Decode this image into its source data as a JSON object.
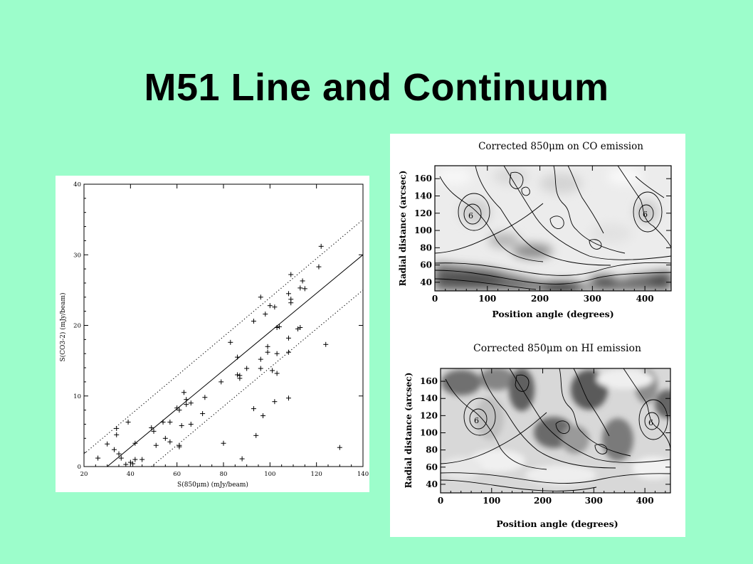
{
  "slide": {
    "title": "M51 Line and Continuum"
  },
  "chart_data": [
    {
      "type": "scatter",
      "title": "",
      "xlabel": "S(850μm) (mJy/beam)",
      "ylabel": "S(CO3-2) (mJy/beam)",
      "xlim": [
        20,
        140
      ],
      "ylim": [
        0,
        40
      ],
      "xticks": [
        "20",
        "40",
        "60",
        "80",
        "100",
        "120",
        "140"
      ],
      "yticks": [
        "0",
        "10",
        "20",
        "30",
        "40"
      ],
      "marker": "plus",
      "points": [
        [
          26,
          1.2
        ],
        [
          30,
          3.2
        ],
        [
          33,
          2.4
        ],
        [
          34,
          4.5
        ],
        [
          34,
          5.4
        ],
        [
          35,
          1.8
        ],
        [
          36,
          1.2
        ],
        [
          38,
          0.3
        ],
        [
          39,
          6.3
        ],
        [
          40,
          0.6
        ],
        [
          41,
          0.4
        ],
        [
          42,
          3.3
        ],
        [
          42,
          1.0
        ],
        [
          45,
          1.0
        ],
        [
          49,
          5.5
        ],
        [
          50,
          5.0
        ],
        [
          51,
          3.0
        ],
        [
          54,
          6.3
        ],
        [
          55,
          4.0
        ],
        [
          57,
          6.3
        ],
        [
          57,
          3.5
        ],
        [
          60,
          8.3
        ],
        [
          61,
          8.0
        ],
        [
          61,
          2.8
        ],
        [
          61,
          3.0
        ],
        [
          62,
          5.8
        ],
        [
          63,
          10.5
        ],
        [
          64,
          9.5
        ],
        [
          64,
          8.8
        ],
        [
          66,
          9.0
        ],
        [
          66,
          6.0
        ],
        [
          71,
          7.5
        ],
        [
          72,
          9.8
        ],
        [
          79,
          12.0
        ],
        [
          80,
          3.3
        ],
        [
          83,
          17.6
        ],
        [
          86,
          13.0
        ],
        [
          86,
          15.5
        ],
        [
          87,
          12.5
        ],
        [
          87,
          12.9
        ],
        [
          88,
          1.1
        ],
        [
          90,
          13.9
        ],
        [
          93,
          20.6
        ],
        [
          93,
          8.2
        ],
        [
          94,
          4.4
        ],
        [
          96,
          24.0
        ],
        [
          96,
          15.2
        ],
        [
          96,
          13.9
        ],
        [
          97,
          7.2
        ],
        [
          98,
          21.6
        ],
        [
          99,
          17.0
        ],
        [
          99,
          16.2
        ],
        [
          100,
          22.8
        ],
        [
          101,
          13.6
        ],
        [
          102,
          22.6
        ],
        [
          102,
          9.2
        ],
        [
          103,
          16.0
        ],
        [
          103,
          13.2
        ],
        [
          103,
          19.7
        ],
        [
          104,
          19.8
        ],
        [
          108,
          24.5
        ],
        [
          108,
          16.2
        ],
        [
          108,
          18.2
        ],
        [
          108,
          9.7
        ],
        [
          109,
          27.2
        ],
        [
          109,
          23.7
        ],
        [
          109,
          23.2
        ],
        [
          112,
          19.5
        ],
        [
          113,
          25.3
        ],
        [
          113,
          19.7
        ],
        [
          114,
          26.3
        ],
        [
          115,
          25.2
        ],
        [
          121,
          28.3
        ],
        [
          122,
          31.2
        ],
        [
          124,
          17.3
        ],
        [
          130,
          2.7
        ]
      ],
      "lines": [
        {
          "style": "solid",
          "from": [
            30,
            0
          ],
          "to": [
            140,
            30
          ]
        },
        {
          "style": "dotted",
          "from": [
            20,
            1.8
          ],
          "to": [
            140,
            35
          ]
        },
        {
          "style": "dotted",
          "from": [
            49,
            0
          ],
          "to": [
            140,
            25
          ]
        }
      ]
    },
    {
      "type": "heatmap",
      "title": "Corrected 850μm on CO emission",
      "xlabel": "Position angle (degrees)",
      "ylabel": "Radial distance (arcsec)",
      "xlim": [
        0,
        450
      ],
      "ylim": [
        30,
        175
      ],
      "xticks": [
        "0",
        "100",
        "200",
        "300",
        "400"
      ],
      "yticks": [
        "40",
        "60",
        "80",
        "100",
        "120",
        "140",
        "160"
      ],
      "contour_label": "6",
      "colormap": "grayscale"
    },
    {
      "type": "heatmap",
      "title": "Corrected 850μm on HI emission",
      "xlabel": "Position angle (degrees)",
      "ylabel": "Radial distance (arcsec)",
      "xlim": [
        0,
        450
      ],
      "ylim": [
        30,
        175
      ],
      "xticks": [
        "0",
        "100",
        "200",
        "300",
        "400"
      ],
      "yticks": [
        "40",
        "60",
        "80",
        "100",
        "120",
        "140",
        "160"
      ],
      "contour_label": "6",
      "colormap": "grayscale"
    }
  ]
}
